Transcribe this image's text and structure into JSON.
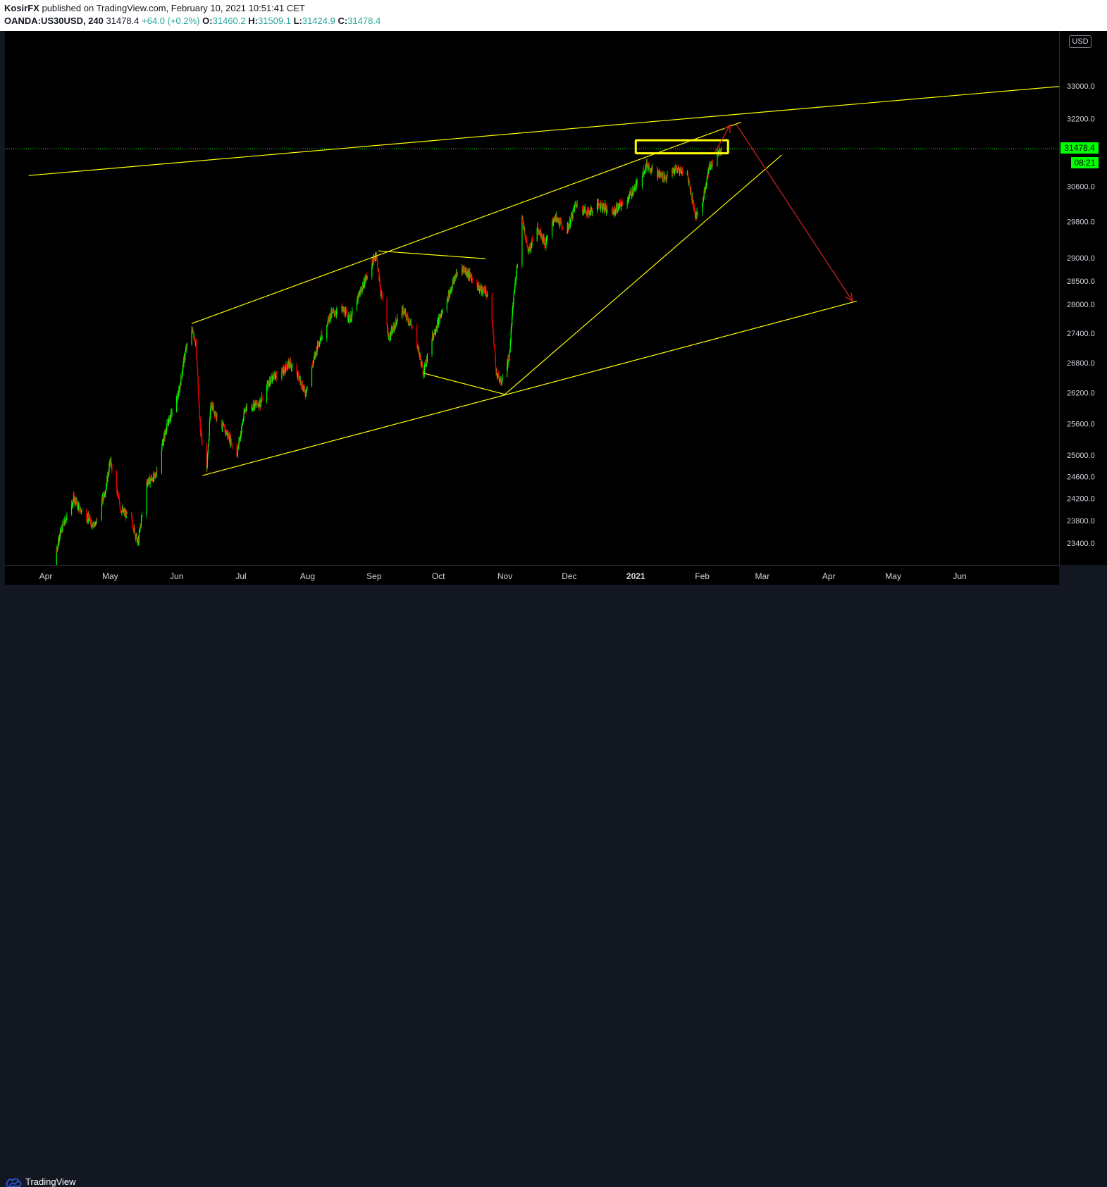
{
  "header": {
    "author": "KosirFX",
    "published_text": "published on TradingView.com, February 10, 2021 10:51:41 CET",
    "symbol": "OANDA:US30USD, 240",
    "last": "31478.4",
    "change": "+64.0 (+0.2%)",
    "o_label": "O:",
    "o_value": "31460.2",
    "h_label": "H:",
    "h_value": "31509.1",
    "l_label": "L:",
    "l_value": "31424.9",
    "c_label": "C:",
    "c_value": "31478.4"
  },
  "price_axis": {
    "currency": "USD",
    "current_price": "31478.4",
    "countdown": "08:21"
  },
  "footer": {
    "brand": "TradingView"
  },
  "colors": {
    "background": "#000000",
    "up": "#00ff00",
    "down": "#ff0000",
    "trendline": "#ffff00",
    "projection_arrow": "#b21c1c",
    "current_price_line": "#00ff00"
  },
  "chart_data": {
    "type": "candlestick",
    "symbol": "OANDA:US30USD",
    "interval": "240",
    "y_ticks": [
      33000,
      32200,
      30600,
      29800,
      29000,
      28500,
      28000,
      27400,
      26800,
      26200,
      25600,
      25000,
      24600,
      24200,
      23800,
      23400
    ],
    "y_tick_labels": [
      "33000.0",
      "32200.0",
      "30600.0",
      "29800.0",
      "29000.0",
      "28500.0",
      "28000.0",
      "27400.0",
      "26800.0",
      "26200.0",
      "25600.0",
      "25000.0",
      "24600.0",
      "24200.0",
      "23800.0",
      "23400.0"
    ],
    "x_tick_labels": [
      "Apr",
      "May",
      "Jun",
      "Jul",
      "Aug",
      "Sep",
      "Oct",
      "Nov",
      "Dec",
      "2021",
      "Feb",
      "Mar",
      "Apr",
      "May",
      "Jun"
    ],
    "price_path": [
      [
        "2020-03-25",
        21500
      ],
      [
        "2020-04-01",
        22500
      ],
      [
        "2020-04-08",
        23600
      ],
      [
        "2020-04-14",
        24200
      ],
      [
        "2020-04-17",
        24000
      ],
      [
        "2020-04-24",
        23700
      ],
      [
        "2020-04-29",
        24400
      ],
      [
        "2020-05-01",
        24900
      ],
      [
        "2020-05-06",
        24000
      ],
      [
        "2020-05-11",
        23800
      ],
      [
        "2020-05-14",
        23400
      ],
      [
        "2020-05-18",
        24500
      ],
      [
        "2020-05-22",
        24600
      ],
      [
        "2020-05-27",
        25500
      ],
      [
        "2020-06-02",
        26200
      ],
      [
        "2020-06-05",
        27000
      ],
      [
        "2020-06-08",
        27500
      ],
      [
        "2020-06-10",
        27200
      ],
      [
        "2020-06-12",
        25500
      ],
      [
        "2020-06-15",
        24700
      ],
      [
        "2020-06-17",
        26000
      ],
      [
        "2020-06-20",
        25700
      ],
      [
        "2020-06-26",
        25300
      ],
      [
        "2020-06-29",
        25000
      ],
      [
        "2020-07-03",
        25900
      ],
      [
        "2020-07-10",
        26000
      ],
      [
        "2020-07-15",
        26500
      ],
      [
        "2020-07-20",
        26600
      ],
      [
        "2020-07-24",
        26800
      ],
      [
        "2020-07-28",
        26500
      ],
      [
        "2020-07-31",
        26200
      ],
      [
        "2020-08-06",
        27200
      ],
      [
        "2020-08-12",
        27800
      ],
      [
        "2020-08-17",
        27900
      ],
      [
        "2020-08-21",
        27700
      ],
      [
        "2020-08-26",
        28300
      ],
      [
        "2020-09-02",
        29100
      ],
      [
        "2020-09-04",
        28300
      ],
      [
        "2020-09-08",
        27300
      ],
      [
        "2020-09-14",
        27900
      ],
      [
        "2020-09-18",
        27600
      ],
      [
        "2020-09-21",
        27200
      ],
      [
        "2020-09-24",
        26600
      ],
      [
        "2020-09-28",
        27300
      ],
      [
        "2020-10-05",
        28100
      ],
      [
        "2020-10-09",
        28600
      ],
      [
        "2020-10-12",
        28800
      ],
      [
        "2020-10-16",
        28600
      ],
      [
        "2020-10-21",
        28300
      ],
      [
        "2020-10-23",
        28300
      ],
      [
        "2020-10-26",
        27700
      ],
      [
        "2020-10-28",
        26600
      ],
      [
        "2020-10-30",
        26400
      ],
      [
        "2020-11-03",
        26900
      ],
      [
        "2020-11-05",
        28100
      ],
      [
        "2020-11-09",
        29900
      ],
      [
        "2020-11-12",
        29100
      ],
      [
        "2020-11-16",
        29700
      ],
      [
        "2020-11-20",
        29300
      ],
      [
        "2020-11-24",
        29900
      ],
      [
        "2020-11-30",
        29600
      ],
      [
        "2020-12-04",
        30200
      ],
      [
        "2020-12-10",
        30000
      ],
      [
        "2020-12-15",
        30200
      ],
      [
        "2020-12-21",
        30000
      ],
      [
        "2020-12-28",
        30300
      ],
      [
        "2021-01-01",
        30600
      ],
      [
        "2021-01-06",
        31100
      ],
      [
        "2021-01-11",
        30900
      ],
      [
        "2021-01-15",
        30800
      ],
      [
        "2021-01-20",
        31000
      ],
      [
        "2021-01-25",
        30900
      ],
      [
        "2021-01-29",
        29900
      ],
      [
        "2021-02-01",
        30200
      ],
      [
        "2021-02-04",
        31000
      ],
      [
        "2021-02-08",
        31400
      ],
      [
        "2021-02-10",
        31478.4
      ]
    ],
    "trendlines": [
      {
        "from": [
          "2020-03-24",
          30850
        ],
        "to": [
          "2021-07-31",
          33050
        ]
      },
      {
        "from": [
          "2020-06-08",
          27600
        ],
        "to": [
          "2021-02-19",
          32110
        ]
      },
      {
        "from": [
          "2020-06-13",
          24620
        ],
        "to": [
          "2021-04-14",
          28070
        ]
      },
      {
        "from": [
          "2020-11-01",
          26170
        ],
        "to": [
          "2021-03-10",
          31330
        ]
      },
      {
        "from": [
          "2020-09-03",
          29150
        ],
        "to": [
          "2020-10-23",
          28980
        ]
      },
      {
        "from": [
          "2020-09-24",
          26590
        ],
        "to": [
          "2020-11-01",
          26170
        ]
      }
    ],
    "resistance_box": {
      "x_range": [
        "2021-01-01",
        "2021-02-13"
      ],
      "y_range": [
        31370,
        31680
      ]
    },
    "projection_arrows": [
      {
        "from": [
          "2021-02-07",
          31400
        ],
        "to": [
          "2021-02-14",
          32050
        ]
      },
      {
        "from": [
          "2021-02-17",
          32050
        ],
        "to": [
          "2021-04-12",
          28070
        ]
      }
    ],
    "current_price": 31478.4,
    "countdown": "08:21",
    "grid": false,
    "legend": "none"
  }
}
